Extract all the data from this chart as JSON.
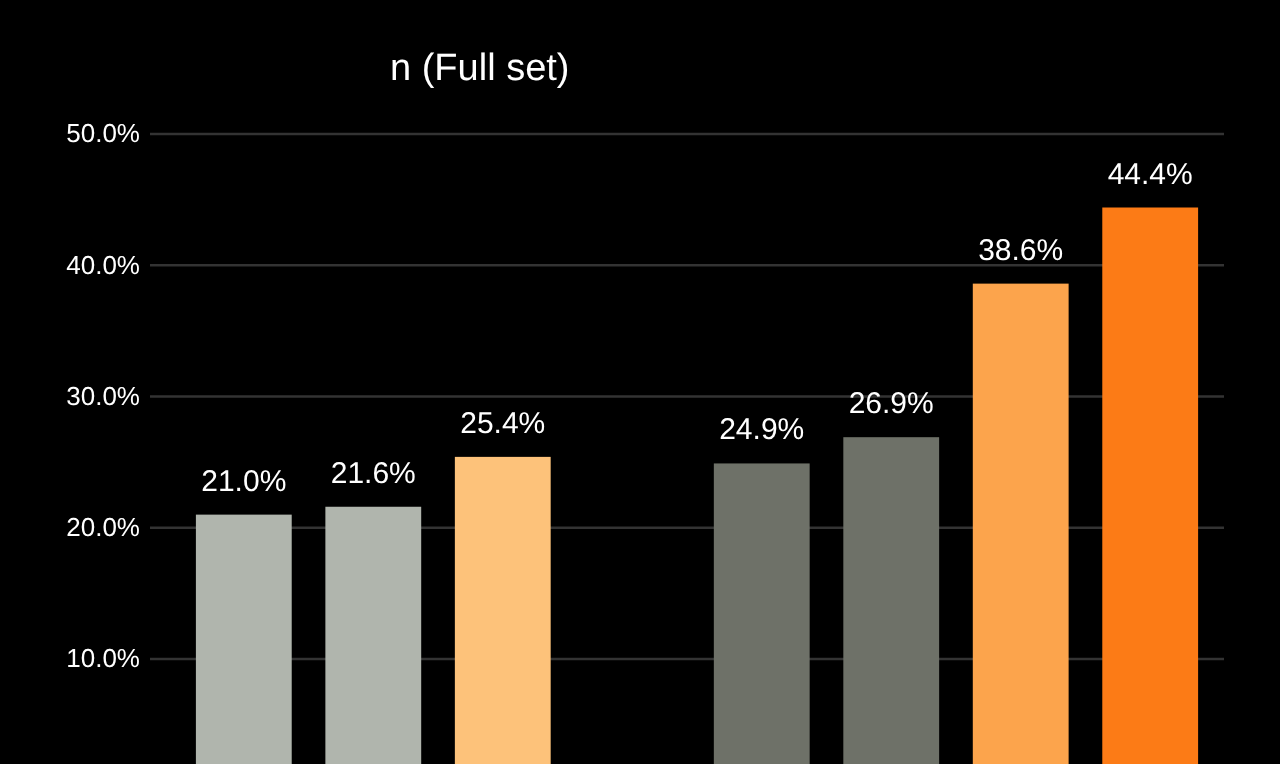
{
  "chart_data": {
    "type": "bar",
    "title": "n (Full set)",
    "categories": [
      null,
      null,
      null,
      null,
      null,
      null,
      null,
      null
    ],
    "values": [
      21.0,
      21.6,
      25.4,
      null,
      24.9,
      26.9,
      38.6,
      44.4
    ],
    "colors": [
      "#b0b5ad",
      "#b0b5ad",
      "#fdc27a",
      null,
      "#6e7168",
      "#6e7168",
      "#fca44c",
      "#fc7b16"
    ],
    "value_labels": [
      "21.0%",
      "21.6%",
      "25.4%",
      null,
      "24.9%",
      "26.9%",
      "38.6%",
      "44.4%"
    ],
    "ylim": [
      2,
      50
    ],
    "yticks": [
      {
        "value": 10,
        "label": "10.0%"
      },
      {
        "value": 20,
        "label": "20.0%"
      },
      {
        "value": 30,
        "label": "30.0%"
      },
      {
        "value": 40,
        "label": "40.0%"
      },
      {
        "value": 50,
        "label": "50.0%"
      }
    ],
    "grid": "y"
  }
}
